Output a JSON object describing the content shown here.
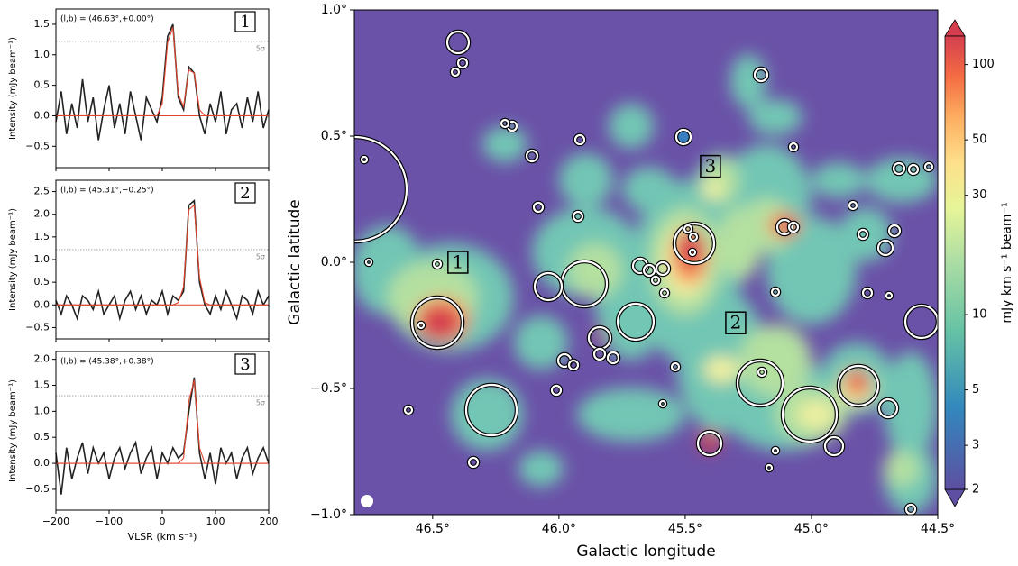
{
  "chart_data": [
    {
      "type": "line",
      "coords": "(l,b) = (46.63°,+0.00°)",
      "panel_label": "1",
      "ylabel": "Intensity (mJy beam⁻¹)",
      "x": [
        -200,
        -190,
        -180,
        -170,
        -160,
        -150,
        -140,
        -130,
        -120,
        -110,
        -100,
        -90,
        -80,
        -70,
        -60,
        -50,
        -40,
        -30,
        -20,
        -10,
        0,
        10,
        20,
        30,
        40,
        50,
        60,
        70,
        80,
        90,
        100,
        110,
        120,
        130,
        140,
        150,
        160,
        170,
        180,
        190,
        200
      ],
      "series": [
        {
          "color": "#222222",
          "values": [
            -0.1,
            0.4,
            -0.3,
            0.2,
            -0.2,
            0.6,
            -0.1,
            0.3,
            -0.4,
            0.1,
            0.5,
            -0.2,
            0.2,
            -0.3,
            0.4,
            0.0,
            -0.4,
            0.3,
            0.1,
            -0.1,
            0.3,
            1.3,
            1.5,
            0.3,
            0.1,
            0.8,
            0.7,
            0.0,
            -0.3,
            0.2,
            -0.1,
            0.4,
            -0.3,
            0.1,
            0.2,
            -0.2,
            0.3,
            -0.1,
            0.4,
            -0.2,
            0.1
          ]
        },
        {
          "color": "#e0452c",
          "values": [
            0,
            0,
            0,
            0,
            0,
            0,
            0,
            0,
            0,
            0,
            0,
            0,
            0,
            0,
            0,
            0,
            0,
            0,
            0,
            0,
            0.2,
            1.2,
            1.45,
            0.35,
            0.15,
            0.75,
            0.7,
            0.1,
            0,
            0,
            0,
            0,
            0,
            0,
            0,
            0,
            0,
            0,
            0,
            0,
            0
          ]
        }
      ],
      "threshold": {
        "value": 1.22,
        "label": "5σ"
      },
      "xlim": [
        -200,
        200
      ],
      "xticks": [
        {
          "value": -200,
          "label": "−200"
        },
        {
          "value": -100,
          "label": "−100"
        },
        0,
        100,
        200
      ],
      "ylim": [
        -0.85,
        1.75
      ],
      "yticks": [
        {
          "value": -0.5,
          "label": "−0.5"
        },
        {
          "value": 0,
          "label": "0.0"
        },
        0.5,
        {
          "value": 1,
          "label": "1.0"
        },
        1.5
      ]
    },
    {
      "type": "line",
      "coords": "(l,b) = (45.31°,−0.25°)",
      "panel_label": "2",
      "ylabel": "Intensity (mJy beam⁻¹)",
      "x": [
        -200,
        -190,
        -180,
        -170,
        -160,
        -150,
        -140,
        -130,
        -120,
        -110,
        -100,
        -90,
        -80,
        -70,
        -60,
        -50,
        -40,
        -30,
        -20,
        -10,
        0,
        10,
        20,
        30,
        40,
        50,
        60,
        70,
        80,
        90,
        100,
        110,
        120,
        130,
        140,
        150,
        160,
        170,
        180,
        190,
        200
      ],
      "series": [
        {
          "color": "#222222",
          "values": [
            0.1,
            -0.2,
            0.2,
            0.0,
            -0.3,
            0.2,
            0.1,
            -0.1,
            0.3,
            -0.2,
            0.0,
            0.2,
            -0.3,
            0.1,
            0.3,
            -0.1,
            0.2,
            -0.2,
            0.1,
            0.0,
            0.3,
            -0.2,
            0.2,
            0.1,
            0.3,
            2.2,
            2.3,
            0.5,
            0.0,
            -0.2,
            0.2,
            -0.1,
            0.3,
            0.0,
            -0.3,
            0.2,
            0.1,
            -0.2,
            0.3,
            0.0,
            0.2
          ]
        },
        {
          "color": "#e0452c",
          "values": [
            0,
            0,
            0,
            0,
            0,
            0,
            0,
            0,
            0,
            0,
            0,
            0,
            0,
            0,
            0,
            0,
            0,
            0,
            0,
            0,
            0,
            0,
            0,
            0.05,
            0.4,
            2.1,
            2.2,
            0.6,
            0.05,
            0,
            0,
            0,
            0,
            0,
            0,
            0,
            0,
            0,
            0,
            0,
            0
          ]
        }
      ],
      "threshold": {
        "value": 1.22,
        "label": "5σ"
      },
      "xlim": [
        -200,
        200
      ],
      "xticks": [
        {
          "value": -200,
          "label": "−200"
        },
        {
          "value": -100,
          "label": "−100"
        },
        0,
        100,
        200
      ],
      "ylim": [
        -0.75,
        2.75
      ],
      "yticks": [
        {
          "value": -0.5,
          "label": "−0.5"
        },
        {
          "value": 0,
          "label": "0.0"
        },
        0.5,
        {
          "value": 1,
          "label": "1.0"
        },
        1.5,
        {
          "value": 2,
          "label": "2.0"
        },
        2.5
      ]
    },
    {
      "type": "line",
      "coords": "(l,b) = (45.38°,+0.38°)",
      "panel_label": "3",
      "ylabel": "Intensity (mJy beam⁻¹)",
      "xlabel": "VLSR (km s⁻¹)",
      "x": [
        -200,
        -190,
        -180,
        -170,
        -160,
        -150,
        -140,
        -130,
        -120,
        -110,
        -100,
        -90,
        -80,
        -70,
        -60,
        -50,
        -40,
        -30,
        -20,
        -10,
        0,
        10,
        20,
        30,
        40,
        50,
        60,
        70,
        80,
        90,
        100,
        110,
        120,
        130,
        140,
        150,
        160,
        170,
        180,
        190,
        200
      ],
      "series": [
        {
          "color": "#222222",
          "values": [
            0.2,
            -0.6,
            0.3,
            -0.3,
            0.1,
            0.4,
            -0.2,
            0.3,
            0.0,
            0.2,
            -0.3,
            0.1,
            0.3,
            -0.1,
            0.2,
            0.4,
            -0.2,
            0.1,
            0.3,
            -0.3,
            0.2,
            0.0,
            0.3,
            0.1,
            0.2,
            1.0,
            1.65,
            0.2,
            -0.3,
            0.2,
            -0.4,
            0.3,
            0.0,
            0.2,
            -0.3,
            0.1,
            0.3,
            -0.2,
            0.1,
            0.3,
            0.0
          ]
        },
        {
          "color": "#e0452c",
          "values": [
            0,
            0,
            0,
            0,
            0,
            0,
            0,
            0,
            0,
            0,
            0,
            0,
            0,
            0,
            0,
            0,
            0,
            0,
            0,
            0,
            0,
            0,
            0,
            0,
            0.1,
            1.2,
            1.6,
            0.3,
            0,
            0,
            0,
            0,
            0,
            0,
            0,
            0,
            0,
            0,
            0,
            0,
            0
          ]
        }
      ],
      "threshold": {
        "value": 1.3,
        "label": "5σ"
      },
      "xlim": [
        -200,
        200
      ],
      "xticks": [
        {
          "value": -200,
          "label": "−200"
        },
        {
          "value": -100,
          "label": "−100"
        },
        0,
        100,
        200
      ],
      "ylim": [
        -0.9,
        2.15
      ],
      "yticks": [
        {
          "value": -0.5,
          "label": "−0.5"
        },
        {
          "value": 0,
          "label": "0.0"
        },
        0.5,
        {
          "value": 1,
          "label": "1.0"
        },
        1.5,
        {
          "value": 2,
          "label": "2.0"
        }
      ]
    },
    {
      "type": "map",
      "xlabel": "Galactic longitude",
      "ylabel": "Galactic latitude",
      "xlim": [
        46.81,
        44.5
      ],
      "xticks": [
        {
          "value": 46.5,
          "label": "46.5°"
        },
        {
          "value": 46.0,
          "label": "46.0°"
        },
        {
          "value": 45.5,
          "label": "45.5°"
        },
        {
          "value": 45.0,
          "label": "45.0°"
        },
        {
          "value": 44.5,
          "label": "44.5°"
        }
      ],
      "ylim": [
        -1.0,
        1.0
      ],
      "yticks": [
        {
          "value": -1.0,
          "label": "−1.0°"
        },
        {
          "value": -0.5,
          "label": "−0.5°"
        },
        {
          "value": 0,
          "label": "0.0°"
        },
        {
          "value": 0.5,
          "label": "0.5°"
        },
        {
          "value": 1.0,
          "label": "1.0°"
        }
      ],
      "annotations": [
        {
          "text": "1",
          "at": [
            46.4,
            0.0
          ]
        },
        {
          "text": "2",
          "at": [
            45.3,
            -0.24
          ]
        },
        {
          "text": "3",
          "at": [
            45.4,
            0.38
          ]
        }
      ],
      "colorbar": {
        "label": "mJy km s⁻¹ beam⁻¹",
        "log": true,
        "lim": [
          2,
          130
        ],
        "ticks": [
          2,
          3,
          5,
          10,
          30,
          50,
          100
        ]
      }
    }
  ]
}
